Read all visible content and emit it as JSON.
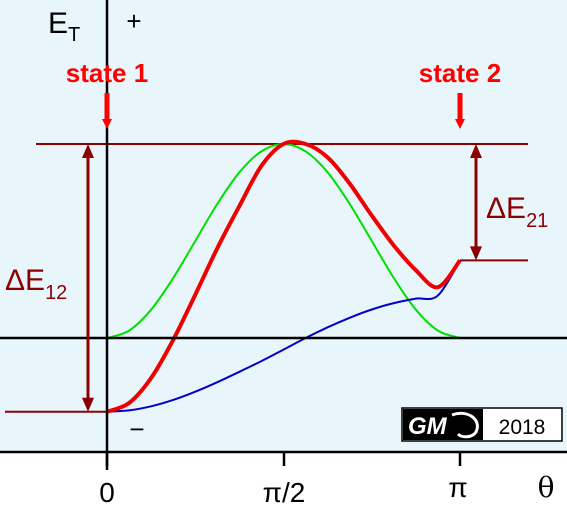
{
  "chart_data": {
    "type": "line",
    "x": [
      0,
      0.1963,
      0.3927,
      0.589,
      0.7854,
      0.9817,
      1.1781,
      1.3744,
      1.5708,
      1.7671,
      1.9635,
      2.1598,
      2.3562,
      2.5525,
      2.7489,
      2.9452,
      3.1416
    ],
    "x_ticks": [
      "0",
      "π/2",
      "π"
    ],
    "x_label": "θ",
    "y_label": "E",
    "y_label_sub": "T",
    "y_top_sign": "+",
    "y_bottom_sign": "−",
    "series": [
      {
        "color": "#00e000",
        "values": [
          0,
          0.038,
          0.146,
          0.309,
          0.5,
          0.691,
          0.854,
          0.962,
          1.0,
          0.962,
          0.854,
          0.691,
          0.5,
          0.309,
          0.146,
          0.038,
          0
        ]
      },
      {
        "color": "#0000c8",
        "values": [
          -0.38,
          -0.373,
          -0.352,
          -0.319,
          -0.277,
          -0.228,
          -0.174,
          -0.119,
          -0.06,
          0,
          0.055,
          0.104,
          0.147,
          0.18,
          0.203,
          0.219,
          0.4
        ]
      },
      {
        "color": "#ee0000",
        "values": [
          -0.38,
          -0.335,
          -0.206,
          -0.01,
          0.223,
          0.463,
          0.68,
          0.887,
          1.0,
          1.0,
          0.931,
          0.796,
          0.631,
          0.477,
          0.349,
          0.262,
          0.4
        ]
      }
    ],
    "levels": {
      "top": 1.0,
      "state2": 0.4,
      "state1": -0.38,
      "zero": 0
    },
    "states": [
      {
        "label": "state 1",
        "x": 0
      },
      {
        "label": "state 2",
        "x": 3.1416
      }
    ],
    "annotations": {
      "delta12": {
        "symbol": "ΔE",
        "sub": "12"
      },
      "delta21": {
        "symbol": "ΔE",
        "sub": "21"
      }
    },
    "colors": {
      "background": "#e8f6fc",
      "level_lines": "#8b0000",
      "arrows_state": "#ff0000",
      "axes": "#000000"
    }
  },
  "logo": {
    "text": "GM",
    "year": "2018"
  }
}
